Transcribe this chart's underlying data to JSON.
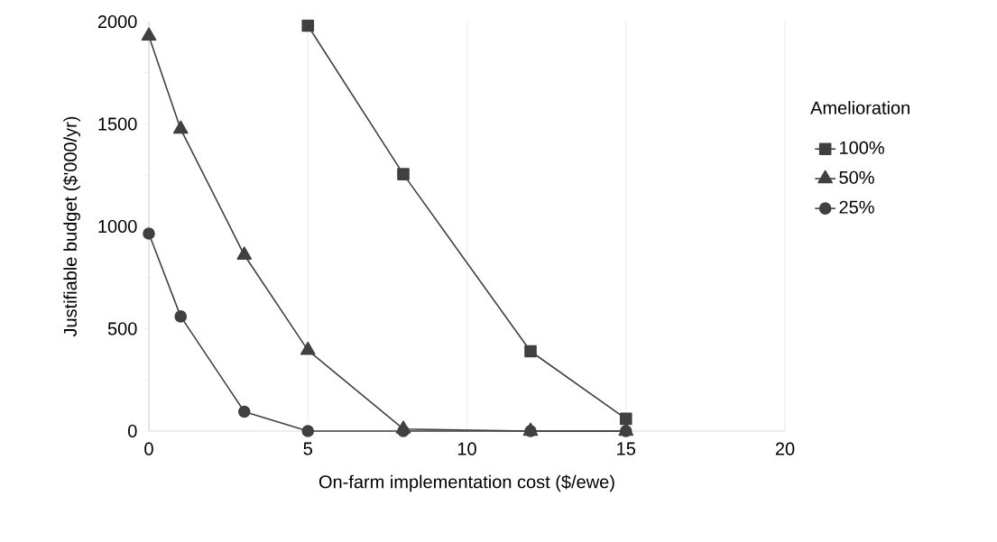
{
  "chart_data": {
    "type": "line",
    "xlabel": "On-farm implementation cost ($/ewe)",
    "ylabel": "Justifiable budget ($'000/yr)",
    "legend_title": "Amelioration",
    "series": [
      {
        "name": "100%",
        "color": "#404040",
        "marker": "square",
        "x": [
          5,
          8,
          12,
          15
        ],
        "values": [
          1980,
          1255,
          390,
          60
        ]
      },
      {
        "name": "50%",
        "color": "#404040",
        "marker": "triangle",
        "x": [
          0,
          1,
          3,
          5,
          8,
          12,
          15
        ],
        "values": [
          1930,
          1475,
          860,
          395,
          10,
          0,
          0
        ]
      },
      {
        "name": "25%",
        "color": "#404040",
        "marker": "circle",
        "x": [
          0,
          1,
          3,
          5,
          8,
          12,
          15
        ],
        "values": [
          965,
          560,
          95,
          0,
          0,
          0,
          0
        ]
      }
    ],
    "xlim": [
      0,
      20
    ],
    "ylim": [
      0,
      2000
    ],
    "xticks": [
      0,
      5,
      10,
      15,
      20
    ],
    "yticks": [
      0,
      {
        "value": 250,
        "label": null
      },
      500,
      {
        "value": 750,
        "label": null
      },
      1000,
      {
        "value": 1250,
        "label": null
      },
      1500,
      {
        "value": 1750,
        "label": null
      },
      2000
    ],
    "grid": "x",
    "legend": "right",
    "line_style": "solid"
  }
}
